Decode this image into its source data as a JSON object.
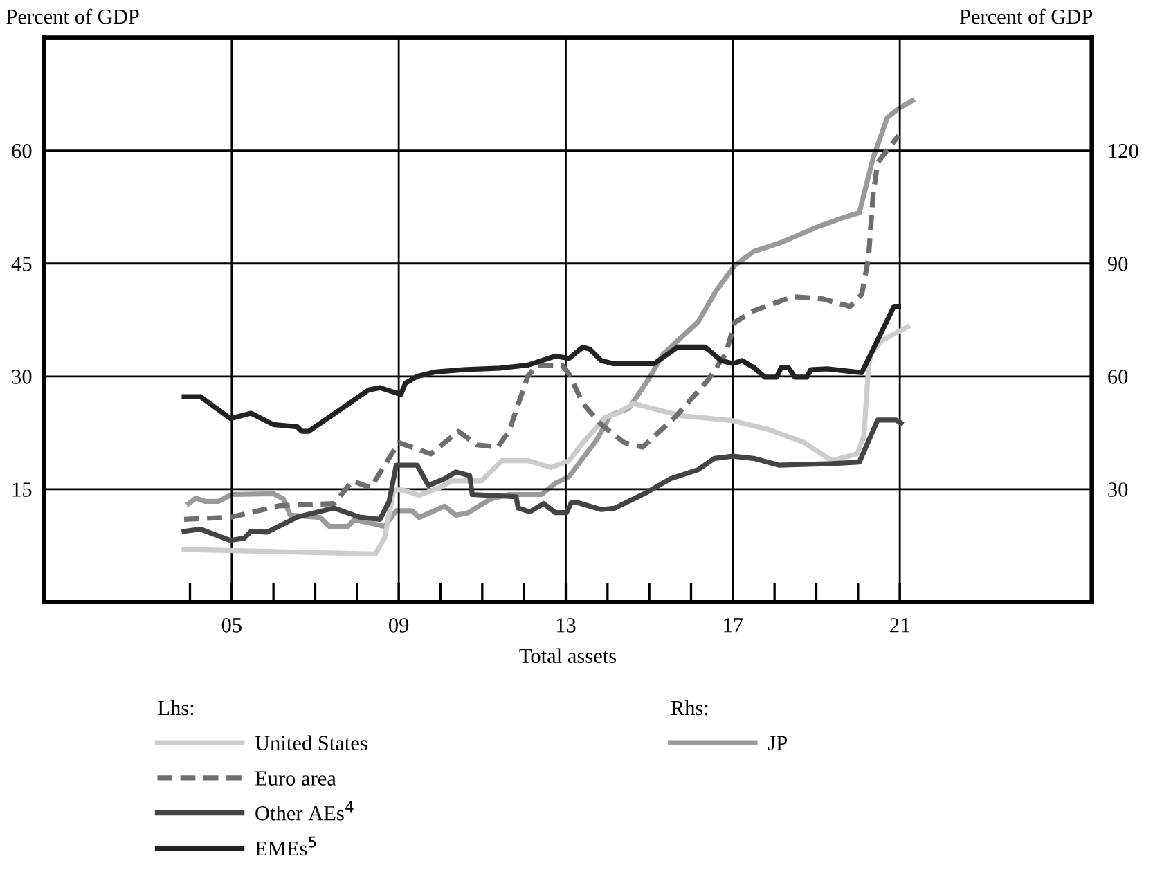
{
  "chart_data": {
    "type": "line",
    "xlabel": "Total assets",
    "ylabel": "Percent of GDP",
    "y2label": "Percent of GDP",
    "annotations": [
      "Lhs:",
      "Rhs:"
    ],
    "xlim": [
      2000.5,
      2025.6
    ],
    "xticks": [
      {
        "value": 2004,
        "label": null
      },
      {
        "value": 2005,
        "label": "05"
      },
      {
        "value": 2006,
        "label": null
      },
      {
        "value": 2007,
        "label": null
      },
      {
        "value": 2008,
        "label": null
      },
      {
        "value": 2009,
        "label": "09"
      },
      {
        "value": 2010,
        "label": null
      },
      {
        "value": 2011,
        "label": null
      },
      {
        "value": 2012,
        "label": null
      },
      {
        "value": 2013,
        "label": "13"
      },
      {
        "value": 2014,
        "label": null
      },
      {
        "value": 2015,
        "label": null
      },
      {
        "value": 2016,
        "label": null
      },
      {
        "value": 2017,
        "label": "17"
      },
      {
        "value": 2018,
        "label": null
      },
      {
        "value": 2019,
        "label": null
      },
      {
        "value": 2020,
        "label": null
      },
      {
        "value": 2021,
        "label": "21"
      }
    ],
    "ylim": [
      0,
      75
    ],
    "yticks": [
      15,
      30,
      45,
      60
    ],
    "y2lim": [
      0,
      150
    ],
    "y2ticks": [
      30,
      60,
      90,
      120
    ],
    "grid": true,
    "legend": "bottom",
    "marker": "none",
    "series": [
      {
        "name": "United States",
        "color": "#cccccc",
        "line_style": "solid",
        "x": [
          2003.86,
          2008.44,
          2008.66,
          2008.88,
          2009.1,
          2009.49,
          2009.98,
          2010.26,
          2010.98,
          2011.47,
          2012.09,
          2012.64,
          2013.08,
          2013.41,
          2013.96,
          2014.24,
          2014.62,
          2015.73,
          2017.0,
          2017.83,
          2018.71,
          2019.37,
          2019.98,
          2020.14,
          2020.25,
          2020.31,
          2020.58,
          2021.19
        ],
        "values": [
          7.0,
          6.4,
          8.5,
          14.9,
          14.9,
          14.2,
          15.2,
          16.1,
          16.1,
          18.8,
          18.8,
          17.9,
          18.8,
          21.2,
          24.6,
          25.1,
          26.4,
          24.8,
          24.1,
          23.0,
          21.2,
          18.8,
          19.7,
          22.1,
          31.2,
          33.0,
          34.8,
          36.6
        ]
      },
      {
        "name": "Euro area",
        "color": "#6e6e6e",
        "line_style": "dashed",
        "x": [
          2003.86,
          2005.0,
          2006.13,
          2007.45,
          2007.89,
          2008.33,
          2009.0,
          2009.77,
          2010.43,
          2010.87,
          2011.37,
          2011.64,
          2012.09,
          2012.31,
          2012.91,
          2013.08,
          2013.41,
          2013.85,
          2014.4,
          2014.84,
          2015.62,
          2016.39,
          2016.83,
          2017.05,
          2017.5,
          2018.43,
          2019.15,
          2019.81,
          2020.09,
          2020.25,
          2020.36,
          2020.47,
          2020.7,
          2020.97
        ],
        "values": [
          11.0,
          11.3,
          12.8,
          13.1,
          16.1,
          15.2,
          21.2,
          19.7,
          22.7,
          20.9,
          20.6,
          22.7,
          30.0,
          31.5,
          31.5,
          30.3,
          26.4,
          23.6,
          21.2,
          20.6,
          24.6,
          29.4,
          33.0,
          37.2,
          38.7,
          40.6,
          40.3,
          39.3,
          40.9,
          45.7,
          54.1,
          58.4,
          60.1,
          62.0
        ]
      },
      {
        "name": "Other AEs$^{4}$",
        "color": "#444444",
        "line_style": "solid",
        "x": [
          2003.86,
          2004.25,
          2004.97,
          2005.3,
          2005.46,
          2005.85,
          2006.57,
          2007.45,
          2008.06,
          2008.55,
          2008.77,
          2008.94,
          2009.44,
          2009.71,
          2010.1,
          2010.37,
          2010.7,
          2010.76,
          2011.81,
          2011.86,
          2012.14,
          2012.47,
          2012.75,
          2013.02,
          2013.13,
          2013.3,
          2013.85,
          2014.18,
          2014.95,
          2015.51,
          2016.17,
          2016.56,
          2017.0,
          2017.5,
          2018.1,
          2019.37,
          2020.03,
          2020.47,
          2020.91,
          2021.03
        ],
        "values": [
          9.4,
          9.7,
          8.2,
          8.5,
          9.4,
          9.3,
          11.3,
          12.5,
          11.3,
          11.0,
          13.4,
          18.2,
          18.2,
          15.5,
          16.4,
          17.3,
          16.8,
          14.3,
          14.0,
          12.5,
          12.0,
          13.1,
          11.9,
          11.9,
          13.2,
          13.2,
          12.3,
          12.5,
          14.6,
          16.4,
          17.6,
          19.1,
          19.4,
          19.1,
          18.2,
          18.4,
          18.6,
          24.2,
          24.2,
          23.8
        ]
      },
      {
        "name": "EMEs$^{5}$",
        "color": "#222222",
        "line_style": "solid",
        "x": [
          2003.86,
          2004.25,
          2004.97,
          2005.46,
          2006.0,
          2006.57,
          2006.68,
          2006.84,
          2008.28,
          2008.55,
          2009.05,
          2009.16,
          2009.44,
          2009.88,
          2010.54,
          2011.42,
          2012.09,
          2012.75,
          2013.08,
          2013.41,
          2013.58,
          2013.85,
          2014.13,
          2015.12,
          2015.68,
          2016.34,
          2016.72,
          2017.0,
          2017.22,
          2017.5,
          2017.77,
          2018.05,
          2018.16,
          2018.33,
          2018.49,
          2018.77,
          2018.87,
          2019.26,
          2020.09,
          2020.86,
          2020.97
        ],
        "values": [
          27.3,
          27.3,
          24.4,
          25.1,
          23.6,
          23.3,
          22.7,
          22.7,
          28.2,
          28.5,
          27.6,
          29.1,
          30.0,
          30.6,
          30.9,
          31.1,
          31.5,
          32.7,
          32.4,
          33.9,
          33.6,
          32.1,
          31.7,
          31.7,
          33.9,
          33.9,
          32.1,
          31.7,
          32.1,
          31.2,
          29.9,
          29.9,
          31.2,
          31.2,
          29.9,
          29.9,
          30.9,
          31.0,
          30.5,
          39.3,
          39.3
        ]
      },
      {
        "name": "JP",
        "color": "#9a9a9a",
        "line_style": "solid",
        "axis": "y2",
        "x": [
          2003.97,
          2004.14,
          2004.36,
          2004.69,
          2005.0,
          2006.0,
          2006.24,
          2006.4,
          2007.12,
          2007.34,
          2007.78,
          2007.94,
          2008.44,
          2008.66,
          2008.94,
          2009.32,
          2009.49,
          2010.1,
          2010.37,
          2010.65,
          2011.2,
          2011.64,
          2012.42,
          2012.75,
          2013.08,
          2013.74,
          2014.07,
          2014.51,
          2014.95,
          2015.34,
          2016.17,
          2016.61,
          2017.05,
          2017.5,
          2018.16,
          2019.04,
          2019.65,
          2020.03,
          2020.36,
          2020.7,
          2020.97,
          2021.3
        ],
        "values": [
          26.2,
          27.6,
          26.8,
          26.8,
          28.6,
          28.8,
          27.4,
          23.1,
          22.5,
          20.1,
          20.1,
          21.9,
          20.7,
          20.1,
          24.3,
          24.3,
          22.5,
          25.5,
          23.1,
          23.7,
          27.4,
          28.6,
          28.6,
          31.6,
          33.4,
          43.1,
          49.7,
          51.5,
          58.7,
          66.0,
          74.5,
          82.9,
          89.5,
          93.2,
          95.6,
          99.8,
          102.2,
          103.5,
          118.0,
          128.8,
          131.2,
          133.3
        ]
      }
    ]
  }
}
